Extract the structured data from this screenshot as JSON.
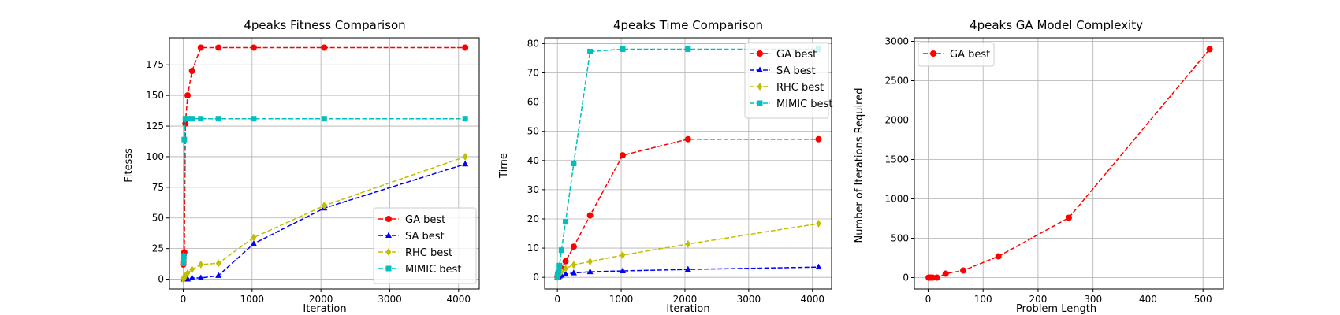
{
  "chart_data": [
    {
      "type": "line",
      "title": "4peaks Fitness Comparison",
      "xlabel": "Iteration",
      "ylabel": "Fitesss",
      "xlim": [
        -200,
        4300
      ],
      "ylim": [
        -8,
        197
      ],
      "xticks": [
        0,
        1000,
        2000,
        3000,
        4000
      ],
      "yticks": [
        0,
        25,
        50,
        75,
        100,
        125,
        150,
        175
      ],
      "grid": true,
      "legend_position": "lower-right",
      "series": [
        {
          "name": "GA best",
          "color": "#ff0000",
          "marker": "circle",
          "x": [
            1,
            2,
            4,
            8,
            16,
            32,
            64,
            128,
            256,
            512,
            1024,
            2048,
            4096
          ],
          "y": [
            12,
            14,
            17,
            20,
            22,
            127,
            150,
            170,
            189,
            189,
            189,
            189,
            189
          ]
        },
        {
          "name": "SA best",
          "color": "#0000ff",
          "marker": "triangle",
          "x": [
            1,
            2,
            4,
            8,
            16,
            32,
            64,
            128,
            256,
            512,
            1024,
            2048,
            4096
          ],
          "y": [
            0,
            0,
            0,
            0,
            0,
            0,
            0,
            1,
            1,
            3,
            29,
            58,
            94
          ]
        },
        {
          "name": "RHC best",
          "color": "#bfbf00",
          "marker": "diamond",
          "x": [
            1,
            2,
            4,
            8,
            16,
            32,
            64,
            128,
            256,
            512,
            1024,
            2048,
            4096
          ],
          "y": [
            0,
            0,
            1,
            1,
            1,
            3,
            5,
            8,
            12,
            13,
            34,
            60,
            100
          ]
        },
        {
          "name": "MIMIC best",
          "color": "#00bfbf",
          "marker": "square",
          "x": [
            1,
            2,
            4,
            8,
            16,
            32,
            64,
            128,
            256,
            512,
            1024,
            2048,
            4096
          ],
          "y": [
            13,
            15,
            17,
            19,
            114,
            131,
            131,
            131,
            131,
            131,
            131,
            131,
            131
          ]
        }
      ]
    },
    {
      "type": "line",
      "title": "4peaks Time Comparison",
      "xlabel": "Iteration",
      "ylabel": "Time",
      "xlim": [
        -200,
        4300
      ],
      "ylim": [
        -4,
        82
      ],
      "xticks": [
        0,
        1000,
        2000,
        3000,
        4000
      ],
      "yticks": [
        0,
        10,
        20,
        30,
        40,
        50,
        60,
        70,
        80
      ],
      "grid": true,
      "legend_position": "upper-right",
      "series": [
        {
          "name": "GA best",
          "color": "#ff0000",
          "marker": "circle",
          "x": [
            1,
            2,
            4,
            8,
            16,
            32,
            64,
            128,
            256,
            512,
            1024,
            2048,
            4096
          ],
          "y": [
            0.1,
            0.2,
            0.3,
            0.5,
            1.0,
            2.0,
            3.0,
            5.5,
            10.5,
            21.2,
            41.8,
            47.3,
            47.3
          ]
        },
        {
          "name": "SA best",
          "color": "#0000ff",
          "marker": "triangle",
          "x": [
            1,
            2,
            4,
            8,
            16,
            32,
            64,
            128,
            256,
            512,
            1024,
            2048,
            4096
          ],
          "y": [
            0.0,
            0.0,
            0.0,
            0.1,
            0.2,
            0.4,
            0.7,
            1.1,
            1.5,
            1.9,
            2.2,
            2.7,
            3.5
          ]
        },
        {
          "name": "RHC best",
          "color": "#bfbf00",
          "marker": "diamond",
          "x": [
            1,
            2,
            4,
            8,
            16,
            32,
            64,
            128,
            256,
            512,
            1024,
            2048,
            4096
          ],
          "y": [
            0.0,
            0.1,
            0.2,
            0.3,
            0.6,
            1.1,
            2.0,
            3.0,
            4.3,
            5.4,
            7.6,
            11.4,
            18.4
          ]
        },
        {
          "name": "MIMIC best",
          "color": "#00bfbf",
          "marker": "square",
          "x": [
            1,
            2,
            4,
            8,
            16,
            32,
            64,
            128,
            256,
            512,
            1024,
            2048,
            4096
          ],
          "y": [
            0.2,
            0.5,
            0.8,
            1.2,
            2.0,
            4.0,
            9.3,
            19.0,
            39.0,
            77.3,
            78.1,
            78.1,
            78.1
          ]
        }
      ]
    },
    {
      "type": "line",
      "title": "4peaks GA Model Complexity",
      "xlabel": "Problem Length",
      "ylabel": "Number of Iterations Required",
      "xlim": [
        -25,
        537
      ],
      "ylim": [
        -145,
        3045
      ],
      "xticks": [
        0,
        100,
        200,
        300,
        400,
        500
      ],
      "yticks": [
        0,
        500,
        1000,
        1500,
        2000,
        2500,
        3000
      ],
      "grid": true,
      "legend_position": "upper-left",
      "series": [
        {
          "name": "GA best",
          "color": "#ff0000",
          "marker": "circle",
          "x": [
            1,
            2,
            4,
            8,
            16,
            32,
            64,
            128,
            256,
            512
          ],
          "y": [
            0,
            0,
            0,
            0,
            0,
            50,
            90,
            270,
            760,
            2900
          ]
        }
      ]
    }
  ]
}
